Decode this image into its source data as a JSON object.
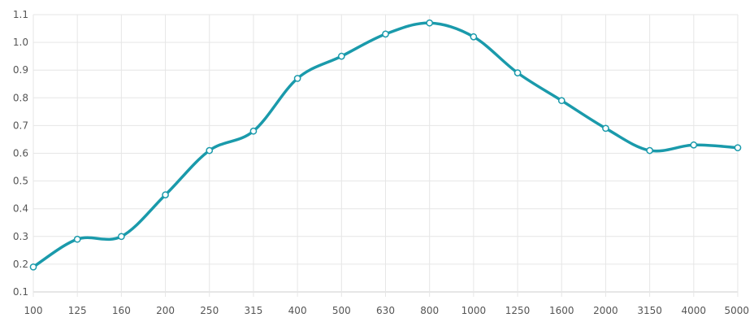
{
  "chart_data": {
    "type": "line",
    "title": "",
    "xlabel": "",
    "ylabel": "",
    "categories": [
      "100",
      "125",
      "160",
      "200",
      "250",
      "315",
      "400",
      "500",
      "630",
      "800",
      "1000",
      "1250",
      "1600",
      "2000",
      "3150",
      "4000",
      "5000"
    ],
    "series": [
      {
        "values": [
          0.19,
          0.29,
          0.3,
          0.45,
          0.61,
          0.68,
          0.87,
          0.95,
          1.03,
          1.07,
          1.02,
          0.89,
          0.79,
          0.69,
          0.61,
          0.63,
          0.62
        ],
        "color": "#1a9aab"
      }
    ],
    "yticks": [
      "0.1",
      "0.2",
      "0.3",
      "0.4",
      "0.5",
      "0.6",
      "0.7",
      "0.8",
      "0.9",
      "1.0",
      "1.1"
    ],
    "ylim": [
      0.1,
      1.1
    ],
    "grid": true,
    "smooth": true,
    "colors": {
      "grid": "#e6e6e6",
      "axis": "#cccccc",
      "point_fill": "#ffffff"
    }
  }
}
